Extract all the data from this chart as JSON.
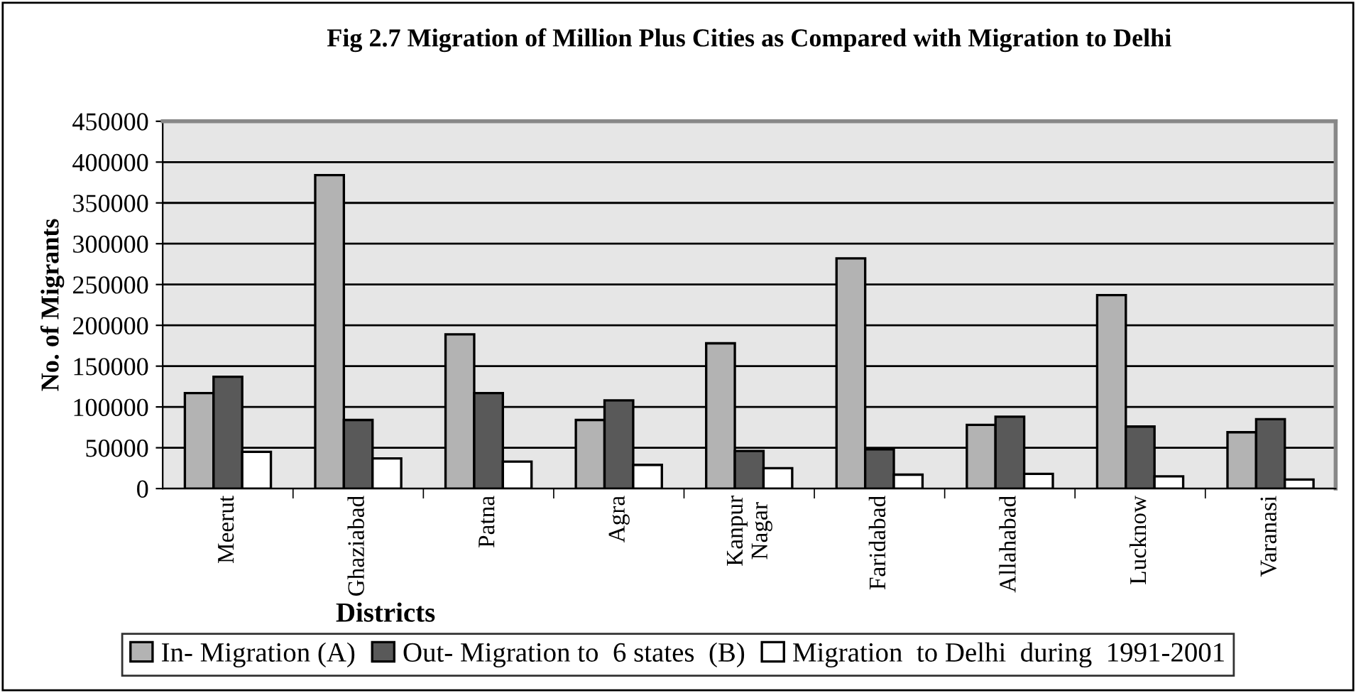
{
  "chart_data": {
    "type": "bar",
    "title": "Fig 2.7 Migration of Million Plus Cities as Compared with Migration to Delhi",
    "xlabel": "Districts",
    "ylabel": "No. of Migrants",
    "categories": [
      "Meerut",
      "Ghaziabad",
      "Patna",
      "Agra",
      "Kanpur\nNagar",
      "Faridabad",
      "Allahabad",
      "Lucknow",
      "Varanasi"
    ],
    "series": [
      {
        "name": "In- Migration (A)",
        "color": "#b3b3b3",
        "values": [
          117000,
          384000,
          189000,
          84000,
          178000,
          282000,
          78000,
          237000,
          69000
        ]
      },
      {
        "name": "Out- Migration to  6 states  (B)",
        "color": "#595959",
        "values": [
          137000,
          84000,
          117000,
          108000,
          46000,
          48000,
          88000,
          76000,
          85000
        ]
      },
      {
        "name": "Migration  to Delhi  during  1991-2001",
        "color": "#ffffff",
        "values": [
          45000,
          37000,
          33000,
          29000,
          25000,
          17000,
          18000,
          15000,
          11000
        ]
      }
    ],
    "ylim": [
      0,
      450000
    ],
    "yticks": [
      0,
      50000,
      100000,
      150000,
      200000,
      250000,
      300000,
      350000,
      400000,
      450000
    ],
    "grid": "y",
    "legend": "bottom"
  }
}
